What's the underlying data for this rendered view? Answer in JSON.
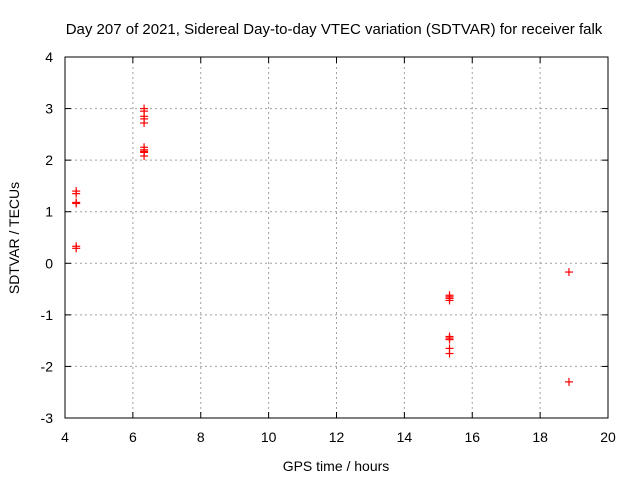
{
  "chart_data": {
    "type": "scatter",
    "title": "Day 207 of 2021, Sidereal Day-to-day VTEC variation (SDTVAR) for receiver falk",
    "xlabel": "GPS time / hours",
    "ylabel": "SDTVAR / TECUs",
    "xlim": [
      4,
      20
    ],
    "ylim": [
      -3,
      4
    ],
    "xticks": [
      4,
      6,
      8,
      10,
      12,
      14,
      16,
      18,
      20
    ],
    "yticks": [
      -3,
      -2,
      -1,
      0,
      1,
      2,
      3,
      4
    ],
    "grid": true,
    "marker": "plus",
    "color": "#ff0000",
    "points": [
      {
        "x": 4.33,
        "y": 1.4
      },
      {
        "x": 4.33,
        "y": 1.35
      },
      {
        "x": 4.33,
        "y": 1.18
      },
      {
        "x": 4.33,
        "y": 1.16
      },
      {
        "x": 4.33,
        "y": 0.33
      },
      {
        "x": 4.33,
        "y": 0.29
      },
      {
        "x": 6.33,
        "y": 3.0
      },
      {
        "x": 6.33,
        "y": 2.95
      },
      {
        "x": 6.33,
        "y": 2.85
      },
      {
        "x": 6.33,
        "y": 2.8
      },
      {
        "x": 6.33,
        "y": 2.72
      },
      {
        "x": 6.33,
        "y": 2.25
      },
      {
        "x": 6.33,
        "y": 2.2
      },
      {
        "x": 6.33,
        "y": 2.17
      },
      {
        "x": 6.33,
        "y": 2.15
      },
      {
        "x": 6.33,
        "y": 2.08
      },
      {
        "x": 15.33,
        "y": -0.62
      },
      {
        "x": 15.33,
        "y": -0.65
      },
      {
        "x": 15.33,
        "y": -0.68
      },
      {
        "x": 15.33,
        "y": -0.72
      },
      {
        "x": 15.33,
        "y": -1.42
      },
      {
        "x": 15.33,
        "y": -1.45
      },
      {
        "x": 15.33,
        "y": -1.48
      },
      {
        "x": 15.33,
        "y": -1.65
      },
      {
        "x": 15.33,
        "y": -1.75
      },
      {
        "x": 18.85,
        "y": -0.17
      },
      {
        "x": 18.85,
        "y": -2.3
      }
    ]
  }
}
